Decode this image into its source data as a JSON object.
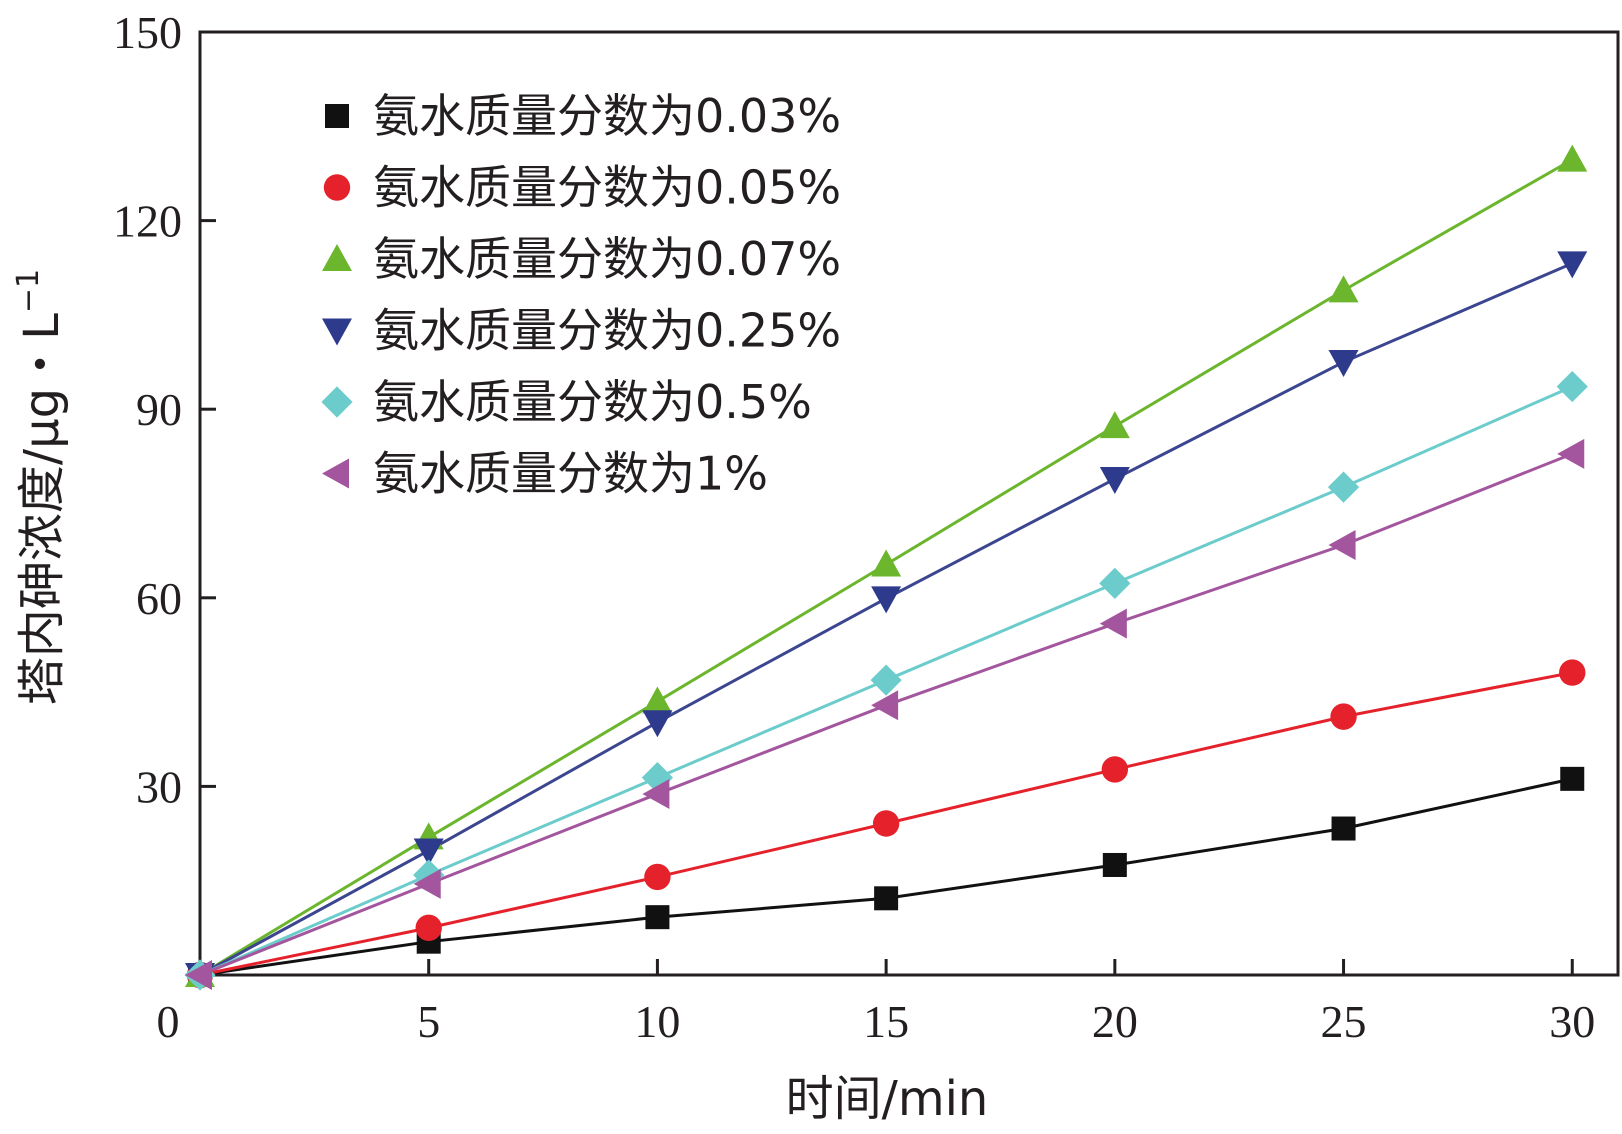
{
  "chart_data": {
    "type": "line",
    "xlabel": "时间/min",
    "ylabel_main": "塔内砷浓度/μg・L",
    "ylabel_sup": "−1",
    "xlim": [
      0,
      31
    ],
    "ylim": [
      0,
      150
    ],
    "x_ticks": [
      0,
      5,
      10,
      15,
      20,
      25,
      30
    ],
    "x_tick_labels": [
      "0",
      "5",
      "10",
      "15",
      "20",
      "25",
      "30"
    ],
    "y_ticks": [
      30,
      60,
      90,
      120,
      150
    ],
    "y_tick_labels": [
      "30",
      "60",
      "90",
      "120",
      "150"
    ],
    "legend_position": "top-left",
    "grid": false,
    "x": [
      0,
      5,
      10,
      15,
      20,
      25,
      30
    ],
    "series": [
      {
        "name": "氨水质量分数为0.03%",
        "marker": "square",
        "color": "#111111",
        "line_color": "#111111",
        "values": [
          0,
          5.3,
          9.2,
          12.2,
          17.5,
          23.3,
          31.2
        ]
      },
      {
        "name": "氨水质量分数为0.05%",
        "marker": "circle",
        "color": "#e5222b",
        "line_color": "#e5222b",
        "values": [
          0,
          7.5,
          15.6,
          24.1,
          32.7,
          41.1,
          48.1
        ]
      },
      {
        "name": "氨水质量分数为0.07%",
        "marker": "triangle-up",
        "color": "#6bb62d",
        "line_color": "#6bb62d",
        "values": [
          0,
          21.9,
          43.5,
          65.3,
          87.3,
          108.9,
          129.7
        ]
      },
      {
        "name": "氨水质量分数为0.25%",
        "marker": "triangle-down",
        "color": "#2e3a8c",
        "line_color": "#3b4590",
        "values": [
          0,
          19.8,
          40.2,
          59.9,
          78.9,
          97.5,
          113.2
        ]
      },
      {
        "name": "氨水质量分数为0.5%",
        "marker": "diamond",
        "color": "#6ccccc",
        "line_color": "#6ccccc",
        "values": [
          0,
          15.9,
          31.4,
          46.9,
          62.3,
          77.6,
          93.6
        ]
      },
      {
        "name": "氨水质量分数为1%",
        "marker": "triangle-left",
        "color": "#a3559e",
        "line_color": "#a3559e",
        "values": [
          0,
          14.5,
          28.8,
          42.9,
          55.9,
          68.4,
          82.9
        ]
      }
    ]
  }
}
